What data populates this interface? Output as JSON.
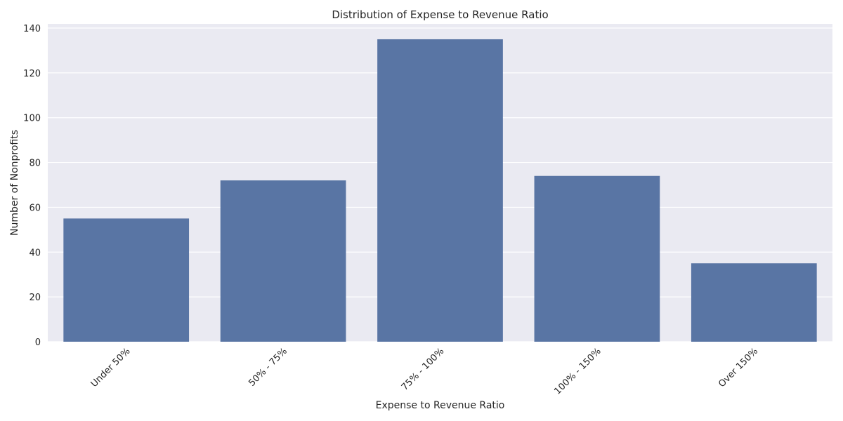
{
  "chart_data": {
    "type": "bar",
    "title": "Distribution of Expense to Revenue Ratio",
    "xlabel": "Expense to Revenue Ratio",
    "ylabel": "Number of Nonprofits",
    "categories": [
      "Under 50%",
      "50% - 75%",
      "75% - 100%",
      "100% - 150%",
      "Over 150%"
    ],
    "values": [
      55,
      72,
      135,
      74,
      35
    ],
    "ylim": [
      0,
      140
    ],
    "yticks": [
      0,
      20,
      40,
      60,
      80,
      100,
      120,
      140
    ],
    "grid": true,
    "colors": {
      "bar": "#5975a4",
      "plot_background": "#eaeaf2",
      "grid": "#ffffff",
      "text": "#262626"
    }
  }
}
